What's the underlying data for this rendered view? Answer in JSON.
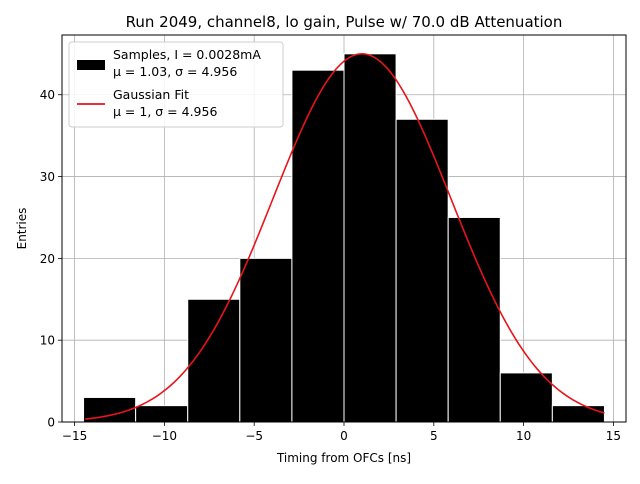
{
  "chart_data": {
    "type": "bar",
    "title": "Run 2049, channel8, lo gain, Pulse w/ 70.0 dB Attenuation",
    "xlabel": "Timing from OFCs [ns]",
    "ylabel": "Entries",
    "xlim": [
      -15.7,
      15.7
    ],
    "ylim": [
      0,
      47.3
    ],
    "grid": true,
    "xticks": [
      -15,
      -10,
      -5,
      0,
      5,
      10,
      15
    ],
    "xtick_labels": [
      "−15",
      "−10",
      "−5",
      "0",
      "5",
      "10",
      "15"
    ],
    "yticks": [
      0,
      10,
      20,
      30,
      40
    ],
    "ytick_labels": [
      "0",
      "10",
      "20",
      "30",
      "40"
    ],
    "histogram": {
      "name": "Samples, I = 0.0028mA",
      "stats": "μ = 1.03, σ = 4.956",
      "color": "#000000",
      "edge_color": "#ffffff",
      "bin_edges": [
        -14.5,
        -11.6,
        -8.7,
        -5.8,
        -2.9,
        0.0,
        2.9,
        5.8,
        8.7,
        11.6,
        14.5
      ],
      "counts": [
        3,
        2,
        15,
        20,
        43,
        45,
        37,
        25,
        6,
        2
      ]
    },
    "fit": {
      "name": "Gaussian Fit",
      "stats": "μ = 1, σ = 4.956",
      "color": "#e8141b",
      "mu": 1.0,
      "sigma": 4.956,
      "amplitude": 45,
      "x_range": [
        -14.4,
        14.5
      ]
    },
    "legend_placement": "top-left"
  }
}
